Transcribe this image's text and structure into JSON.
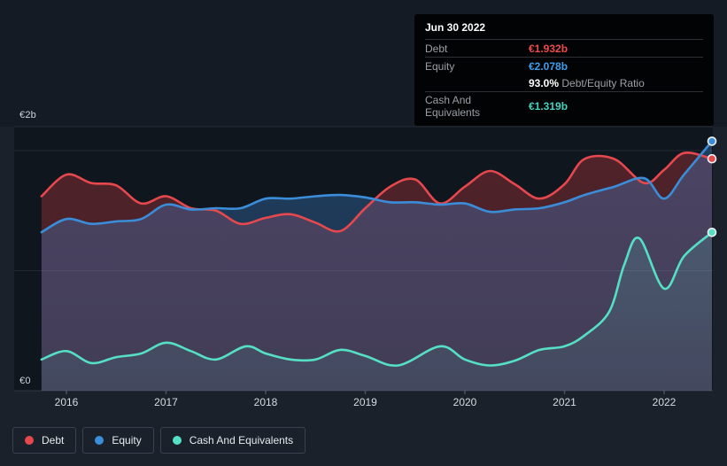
{
  "page": {
    "background": "#1a212b",
    "plot_background": "#10161e",
    "tooltip_background": "#020304"
  },
  "tooltip": {
    "date": "Jun 30 2022",
    "debt_label": "Debt",
    "debt_value": "€1.932b",
    "equity_label": "Equity",
    "equity_value": "€2.078b",
    "ratio_value": "93.0%",
    "ratio_label": "Debt/Equity Ratio",
    "cash_label": "Cash And Equivalents",
    "cash_value": "€1.319b"
  },
  "colors": {
    "debt": "#e5484d",
    "equity": "#3b8dd9",
    "cash": "#55dfc5",
    "debt_value_text": "#ef4b4b",
    "equity_value_text": "#3f9ff0",
    "cash_value_text": "#45d5c1",
    "ratio_value_text": "#ffffff",
    "grid": "rgba(163,177,198,0.12)"
  },
  "chart_data": {
    "type": "area",
    "xlabel": "",
    "ylabel": "",
    "x_ticks": [
      "2016",
      "2017",
      "2018",
      "2019",
      "2020",
      "2021",
      "2022"
    ],
    "y_axis": {
      "top_label": "€2b",
      "bottom_label": "€0"
    },
    "ylim": [
      0,
      2.2
    ],
    "xlim": [
      2015.75,
      2022.5
    ],
    "grid": "horizontal",
    "legend_position": "bottom-left",
    "end_markers": true,
    "hover_date": "Jun 30 2022",
    "series": [
      {
        "name": "Debt",
        "color": "#e5484d",
        "x": [
          2015.75,
          2016,
          2016.25,
          2016.5,
          2016.75,
          2017,
          2017.25,
          2017.5,
          2017.75,
          2018,
          2018.25,
          2018.5,
          2018.75,
          2019,
          2019.25,
          2019.5,
          2019.75,
          2020,
          2020.25,
          2020.5,
          2020.75,
          2021,
          2021.2,
          2021.5,
          2021.8,
          2022,
          2022.2,
          2022.48
        ],
        "values": [
          1.62,
          1.8,
          1.73,
          1.71,
          1.56,
          1.62,
          1.52,
          1.5,
          1.39,
          1.44,
          1.47,
          1.4,
          1.33,
          1.52,
          1.7,
          1.76,
          1.56,
          1.7,
          1.83,
          1.72,
          1.6,
          1.72,
          1.93,
          1.93,
          1.73,
          1.84,
          1.98,
          1.932
        ]
      },
      {
        "name": "Equity",
        "color": "#3b8dd9",
        "x": [
          2015.75,
          2016,
          2016.25,
          2016.5,
          2016.75,
          2017,
          2017.25,
          2017.5,
          2017.75,
          2018,
          2018.25,
          2018.5,
          2018.75,
          2019,
          2019.25,
          2019.5,
          2019.75,
          2020,
          2020.25,
          2020.5,
          2020.75,
          2021,
          2021.2,
          2021.5,
          2021.8,
          2022,
          2022.2,
          2022.48
        ],
        "values": [
          1.32,
          1.43,
          1.39,
          1.41,
          1.43,
          1.55,
          1.51,
          1.52,
          1.52,
          1.6,
          1.6,
          1.62,
          1.63,
          1.61,
          1.57,
          1.57,
          1.55,
          1.56,
          1.49,
          1.51,
          1.52,
          1.57,
          1.63,
          1.7,
          1.77,
          1.6,
          1.8,
          2.078
        ]
      },
      {
        "name": "Cash And Equivalents",
        "color": "#55dfc5",
        "x": [
          2015.75,
          2016,
          2016.25,
          2016.5,
          2016.75,
          2017,
          2017.25,
          2017.5,
          2017.8,
          2018,
          2018.25,
          2018.5,
          2018.75,
          2019,
          2019.33,
          2019.75,
          2020,
          2020.25,
          2020.5,
          2020.75,
          2021,
          2021.2,
          2021.45,
          2021.6,
          2021.75,
          2022,
          2022.2,
          2022.48
        ],
        "values": [
          0.26,
          0.33,
          0.23,
          0.28,
          0.31,
          0.4,
          0.33,
          0.26,
          0.37,
          0.31,
          0.26,
          0.26,
          0.34,
          0.29,
          0.21,
          0.37,
          0.26,
          0.21,
          0.25,
          0.34,
          0.37,
          0.46,
          0.66,
          1.05,
          1.27,
          0.85,
          1.12,
          1.319
        ]
      }
    ]
  },
  "legend": {
    "items": [
      {
        "label": "Debt",
        "color": "#e5484d"
      },
      {
        "label": "Equity",
        "color": "#3b8dd9"
      },
      {
        "label": "Cash And Equivalents",
        "color": "#55dfc5"
      }
    ]
  }
}
